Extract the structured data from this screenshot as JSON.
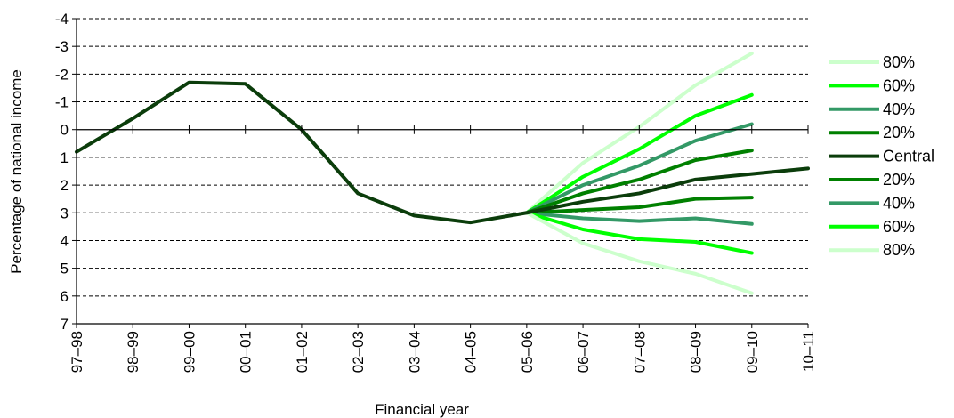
{
  "chart_data": {
    "type": "line",
    "xlabel": "Financial year",
    "ylabel": "Percentage of national income",
    "categories": [
      "97–98",
      "98–99",
      "99–00",
      "00–01",
      "01–02",
      "02–03",
      "03–04",
      "04–05",
      "05–06",
      "06–07",
      "07–08",
      "08–09",
      "09–10",
      "10–11"
    ],
    "y_ticks": [
      "-4",
      "-3",
      "-2",
      "-1",
      "0",
      "1",
      "2",
      "3",
      "4",
      "5",
      "6",
      "7"
    ],
    "ylim": [
      -4,
      7
    ],
    "y_axis_inverted": true,
    "grid": "horizontal dashed",
    "legend_position": "right",
    "series": [
      {
        "name": "Central",
        "color": "#0b3d0b",
        "values": [
          0.8,
          -0.4,
          -1.7,
          -1.65,
          0.0,
          2.3,
          3.1,
          3.35,
          3.0,
          2.6,
          2.3,
          1.8,
          1.6,
          1.4
        ]
      },
      {
        "name": "80%",
        "color": "#ccffcc",
        "values": [
          null,
          null,
          null,
          null,
          null,
          null,
          null,
          null,
          3.0,
          1.2,
          -0.1,
          -1.6,
          -2.75,
          null
        ]
      },
      {
        "name": "60%",
        "color": "#00ff00",
        "values": [
          null,
          null,
          null,
          null,
          null,
          null,
          null,
          null,
          3.0,
          1.7,
          0.7,
          -0.5,
          -1.25,
          null
        ]
      },
      {
        "name": "40%",
        "color": "#339966",
        "values": [
          null,
          null,
          null,
          null,
          null,
          null,
          null,
          null,
          3.0,
          2.0,
          1.3,
          0.4,
          -0.2,
          null
        ]
      },
      {
        "name": "20%",
        "color": "#008000",
        "values": [
          null,
          null,
          null,
          null,
          null,
          null,
          null,
          null,
          3.0,
          2.3,
          1.8,
          1.1,
          0.75,
          null
        ]
      },
      {
        "name": "20%",
        "color": "#008000",
        "values": [
          null,
          null,
          null,
          null,
          null,
          null,
          null,
          null,
          3.0,
          2.9,
          2.8,
          2.5,
          2.45,
          null
        ]
      },
      {
        "name": "40%",
        "color": "#339966",
        "values": [
          null,
          null,
          null,
          null,
          null,
          null,
          null,
          null,
          3.0,
          3.2,
          3.3,
          3.2,
          3.4,
          null
        ]
      },
      {
        "name": "60%",
        "color": "#00ff00",
        "values": [
          null,
          null,
          null,
          null,
          null,
          null,
          null,
          null,
          3.0,
          3.6,
          3.95,
          4.05,
          4.45,
          null
        ]
      },
      {
        "name": "80%",
        "color": "#ccffcc",
        "values": [
          null,
          null,
          null,
          null,
          null,
          null,
          null,
          null,
          3.0,
          4.1,
          4.75,
          5.2,
          5.9,
          null
        ]
      }
    ],
    "legend": [
      {
        "label": "80%",
        "color": "#ccffcc"
      },
      {
        "label": "60%",
        "color": "#00ff00"
      },
      {
        "label": "40%",
        "color": "#339966"
      },
      {
        "label": "20%",
        "color": "#008000"
      },
      {
        "label": "Central",
        "color": "#0b3d0b"
      },
      {
        "label": "20%",
        "color": "#008000"
      },
      {
        "label": "40%",
        "color": "#339966"
      },
      {
        "label": "60%",
        "color": "#00ff00"
      },
      {
        "label": "80%",
        "color": "#ccffcc"
      }
    ]
  }
}
